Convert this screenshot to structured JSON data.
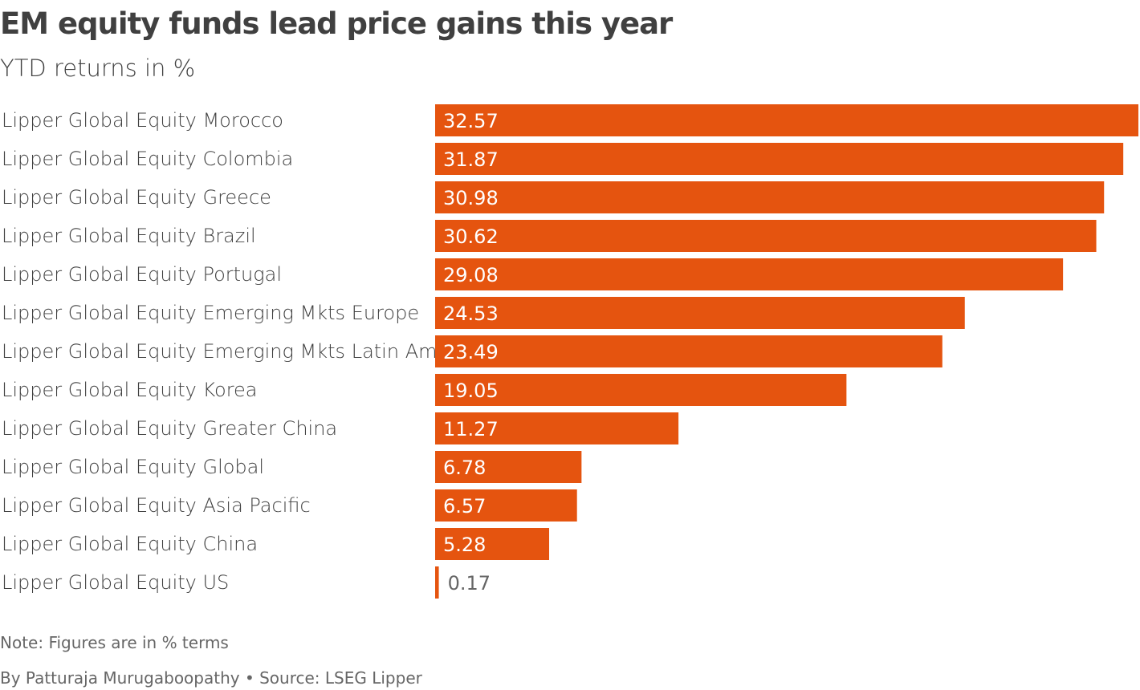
{
  "chart_data": {
    "type": "bar",
    "orientation": "horizontal",
    "title": "EM equity funds lead price gains this year",
    "subtitle": "YTD returns in %",
    "categories": [
      "Lipper Global Equity Morocco",
      "Lipper Global Equity Colombia",
      "Lipper Global Equity Greece",
      "Lipper Global Equity Brazil",
      "Lipper Global Equity Portugal",
      "Lipper Global Equity Emerging Mkts Europe",
      "Lipper Global Equity Emerging Mkts Latin Am",
      "Lipper Global Equity Korea",
      "Lipper Global Equity Greater China",
      "Lipper Global Equity Global",
      "Lipper Global Equity Asia Pacific",
      "Lipper Global Equity China",
      "Lipper Global Equity US"
    ],
    "values": [
      32.57,
      31.87,
      30.98,
      30.62,
      29.08,
      24.53,
      23.49,
      19.05,
      11.27,
      6.78,
      6.57,
      5.28,
      0.17
    ],
    "value_labels": [
      "32.57",
      "31.87",
      "30.98",
      "30.62",
      "29.08",
      "24.53",
      "23.49",
      "19.05",
      "11.27",
      "6.78",
      "6.57",
      "5.28",
      "0.17"
    ],
    "xlim": [
      0,
      32.57
    ],
    "grid": false,
    "bar_color": "#e5540f"
  },
  "footer": {
    "note": "Note: Figures are in % terms",
    "credit": "By Patturaja Murugaboopathy • Source: LSEG Lipper"
  }
}
